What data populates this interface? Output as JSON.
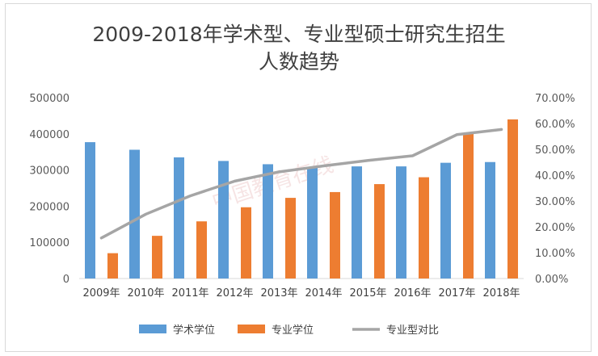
{
  "chart_data": {
    "type": "bar",
    "title_line1": "2009-2018年学术型、专业型硕士研究生招生",
    "title_line2": "人数趋势",
    "categories": [
      "2009年",
      "2010年",
      "2011年",
      "2012年",
      "2013年",
      "2014年",
      "2015年",
      "2016年",
      "2017年",
      "2018年"
    ],
    "series": [
      {
        "name": "学术学位",
        "type": "bar",
        "axis": "left",
        "color": "#5b9bd5",
        "values": [
          377000,
          356000,
          335000,
          325000,
          316000,
          309000,
          310000,
          310000,
          320000,
          322000
        ]
      },
      {
        "name": "专业学位",
        "type": "bar",
        "axis": "left",
        "color": "#ed7d31",
        "values": [
          70000,
          118000,
          158000,
          197000,
          223000,
          239000,
          261000,
          280000,
          402000,
          440000
        ]
      },
      {
        "name": "专业型对比",
        "type": "line",
        "axis": "right",
        "color": "#a5a5a5",
        "values": [
          0.157,
          0.249,
          0.32,
          0.377,
          0.413,
          0.436,
          0.457,
          0.475,
          0.557,
          0.577
        ]
      }
    ],
    "y_left": {
      "min": 0,
      "max": 500000,
      "ticks": [
        "0",
        "100000",
        "200000",
        "300000",
        "400000",
        "500000"
      ]
    },
    "y_right": {
      "min": 0,
      "max": 0.7,
      "ticks": [
        "0.00%",
        "10.00%",
        "20.00%",
        "30.00%",
        "40.00%",
        "50.00%",
        "60.00%",
        "70.00%"
      ]
    },
    "grid": false,
    "legend_position": "bottom"
  },
  "watermark": "中国教育在线"
}
